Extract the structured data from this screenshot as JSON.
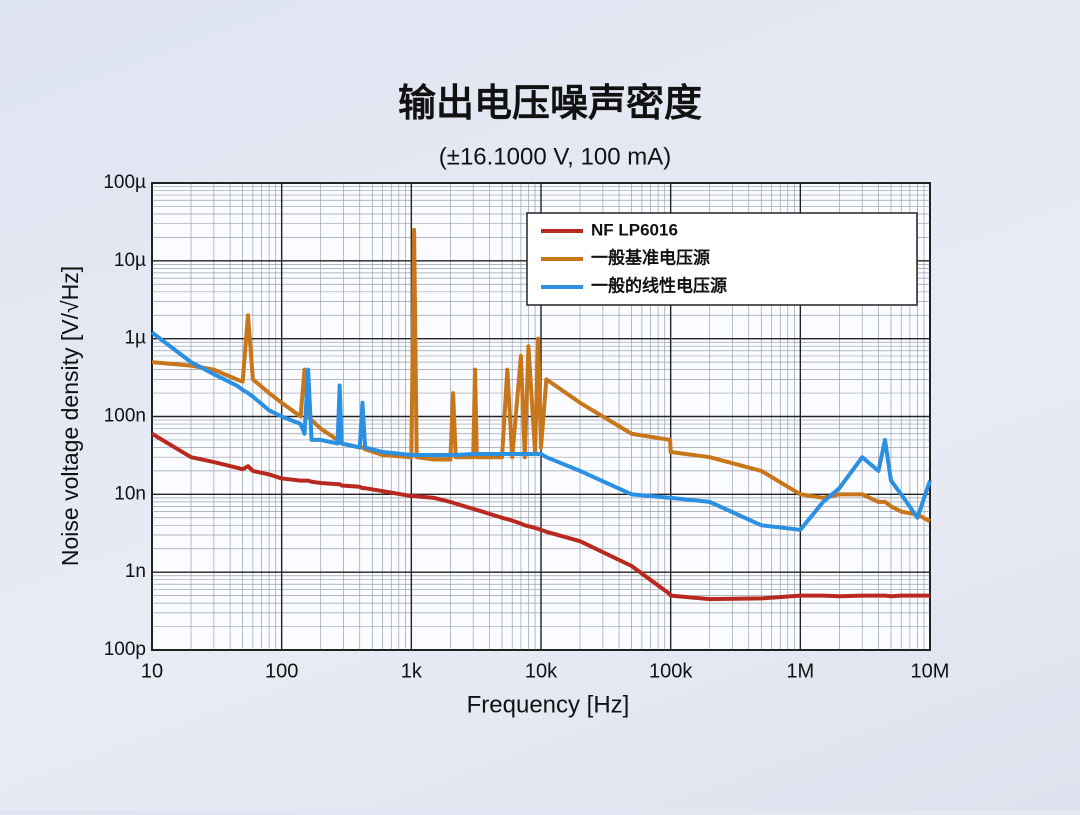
{
  "chart_data": {
    "type": "line",
    "title": "输出电压噪声密度",
    "subtitle": "(±16.1000 V, 100 mA)",
    "x_label": "Frequency [Hz]",
    "y_label": "Noise voltage density [V/√Hz]",
    "x_scale": "log",
    "y_scale": "log",
    "grid": true,
    "legend": "upper right",
    "xlim": [
      10,
      10000000
    ],
    "ylim": [
      1e-10,
      0.0001
    ],
    "xticks": [
      {
        "value": 10,
        "label": "10"
      },
      {
        "value": 100,
        "label": "100"
      },
      {
        "value": 1000,
        "label": "1k"
      },
      {
        "value": 10000,
        "label": "10k"
      },
      {
        "value": 100000,
        "label": "100k"
      },
      {
        "value": 1000000,
        "label": "1M"
      },
      {
        "value": 10000000,
        "label": "10M"
      }
    ],
    "yticks": [
      {
        "value": 1e-10,
        "label": "100p"
      },
      {
        "value": 1e-09,
        "label": "1n"
      },
      {
        "value": 1e-08,
        "label": "10n"
      },
      {
        "value": 1e-07,
        "label": "100n"
      },
      {
        "value": 1e-06,
        "label": "1µ"
      },
      {
        "value": 1e-05,
        "label": "10µ"
      },
      {
        "value": 0.0001,
        "label": "100µ"
      }
    ],
    "x": [
      10,
      20,
      30,
      45,
      50,
      55,
      60,
      80,
      100,
      140,
      150,
      160,
      170,
      200,
      270,
      280,
      290,
      400,
      420,
      440,
      600,
      1000,
      1050,
      1100,
      1500,
      2000,
      2100,
      2200,
      3000,
      3100,
      3200,
      5000,
      5500,
      6000,
      7000,
      7500,
      8000,
      9000,
      9500,
      10000,
      11000,
      20000,
      50000,
      99000,
      100000,
      200000,
      500000,
      1000000,
      1500000,
      2000000,
      3000000,
      4000000,
      4500000,
      5000000,
      6000000,
      8000000,
      10000000
    ],
    "series": [
      {
        "name": "NF LP6016",
        "color": "#b8291f",
        "values": [
          6e-08,
          3e-08,
          2.6e-08,
          2.2e-08,
          2.1e-08,
          2.3e-08,
          2e-08,
          1.8e-08,
          1.6e-08,
          1.5e-08,
          1.5e-08,
          1.5e-08,
          1.45e-08,
          1.4e-08,
          1.35e-08,
          1.35e-08,
          1.3e-08,
          1.25e-08,
          1.2e-08,
          1.2e-08,
          1.1e-08,
          9.5e-09,
          9.5e-09,
          9.4e-09,
          9e-09,
          8e-09,
          7.8e-09,
          7.6e-09,
          6.5e-09,
          6.4e-09,
          6.3e-09,
          5e-09,
          4.8e-09,
          4.6e-09,
          4.2e-09,
          4e-09,
          3.9e-09,
          3.7e-09,
          3.6e-09,
          3.5e-09,
          3.3e-09,
          2.5e-09,
          1.2e-09,
          5.2e-10,
          5e-10,
          4.5e-10,
          4.6e-10,
          5e-10,
          5e-10,
          4.9e-10,
          5e-10,
          5e-10,
          5e-10,
          4.9e-10,
          5e-10,
          5e-10,
          5e-10
        ]
      },
      {
        "name": "一般基准电压源",
        "color": "#c8761a",
        "values": [
          5e-07,
          4.5e-07,
          4e-07,
          3e-07,
          2.8e-07,
          2e-06,
          3e-07,
          2e-07,
          1.5e-07,
          1e-07,
          4e-07,
          1e-07,
          9e-08,
          7e-08,
          5e-08,
          5e-08,
          4.5e-08,
          4e-08,
          4e-08,
          3.8e-08,
          3.2e-08,
          3e-08,
          2.5e-05,
          3e-08,
          2.8e-08,
          2.8e-08,
          2e-07,
          3e-08,
          3e-08,
          4e-07,
          3e-08,
          3e-08,
          4e-07,
          3e-08,
          6e-07,
          3e-08,
          8e-07,
          3.5e-08,
          1e-06,
          4e-08,
          3e-07,
          1.5e-07,
          6e-08,
          5e-08,
          3.5e-08,
          3e-08,
          2e-08,
          1e-08,
          9e-09,
          1e-08,
          1e-08,
          8e-09,
          8e-09,
          7e-09,
          6e-09,
          5.5e-09,
          4.5e-09
        ]
      },
      {
        "name": "一般的线性电压源",
        "color": "#2b8fe2",
        "values": [
          1.2e-06,
          5e-07,
          3.5e-07,
          2.5e-07,
          2.2e-07,
          2e-07,
          1.8e-07,
          1.2e-07,
          1e-07,
          8e-08,
          6e-08,
          4e-07,
          5e-08,
          5e-08,
          4.5e-08,
          2.5e-07,
          4.5e-08,
          4e-08,
          1.5e-07,
          4e-08,
          3.5e-08,
          3.2e-08,
          3.2e-08,
          3.2e-08,
          3.2e-08,
          3.2e-08,
          3.2e-08,
          3.2e-08,
          3.3e-08,
          3.3e-08,
          3.3e-08,
          3.3e-08,
          3.3e-08,
          3.3e-08,
          3.3e-08,
          3.3e-08,
          3.3e-08,
          3.3e-08,
          3.3e-08,
          3.3e-08,
          3e-08,
          2e-08,
          1e-08,
          9e-09,
          9e-09,
          8e-09,
          4e-09,
          3.5e-09,
          8e-09,
          1.2e-08,
          3e-08,
          2e-08,
          5e-08,
          1.5e-08,
          1e-08,
          5e-09,
          1.5e-08
        ]
      }
    ]
  }
}
